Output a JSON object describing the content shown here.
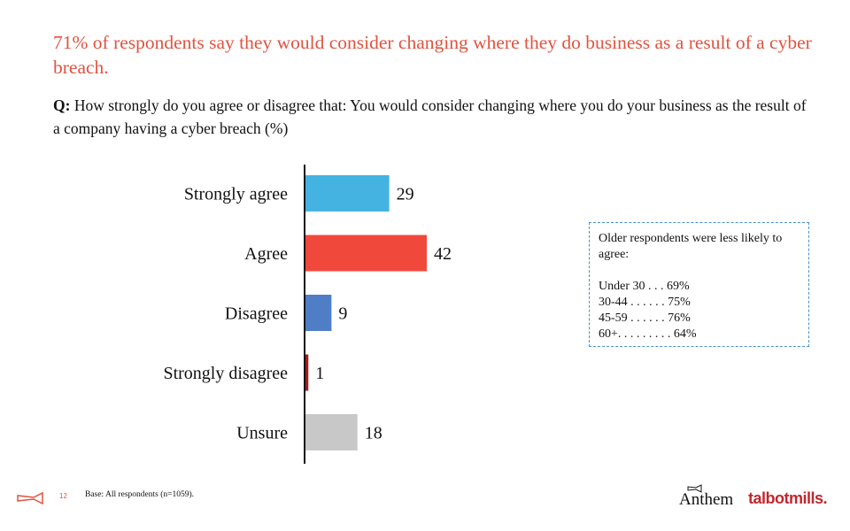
{
  "headline": "71% of respondents say they would consider changing where they do business as a result of a cyber breach.",
  "question": {
    "prefix": "Q:",
    "text": "How strongly do you agree or disagree that: You would consider changing where you do your business as the result of a company having a cyber breach (%)"
  },
  "chart_data": {
    "type": "bar",
    "orientation": "horizontal",
    "categories": [
      "Strongly agree",
      "Agree",
      "Disagree",
      "Strongly disagree",
      "Unsure"
    ],
    "values": [
      29,
      42,
      9,
      1,
      18
    ],
    "value_labels": [
      "29",
      "42",
      "9",
      "1",
      "18"
    ],
    "colors": [
      "#44b3e1",
      "#f1483c",
      "#4f7ec6",
      "#a01c1c",
      "#c8c8c8"
    ],
    "xlim": [
      0,
      42
    ],
    "grid": false,
    "title": "",
    "xlabel": "",
    "ylabel": ""
  },
  "note": {
    "intro": "Older respondents were less likely to agree:",
    "lines": [
      "Under 30 . . . 69%",
      "30-44 . . . . . . 75%",
      "45-59 . . . . . . 76%",
      "60+. . . . . . . . . 64%"
    ]
  },
  "footer": {
    "page_number": "12",
    "base_text": "Base: All respondents (n=1059).",
    "logo_anthem": "Anthem",
    "logo_talbot": "talbotmills."
  }
}
